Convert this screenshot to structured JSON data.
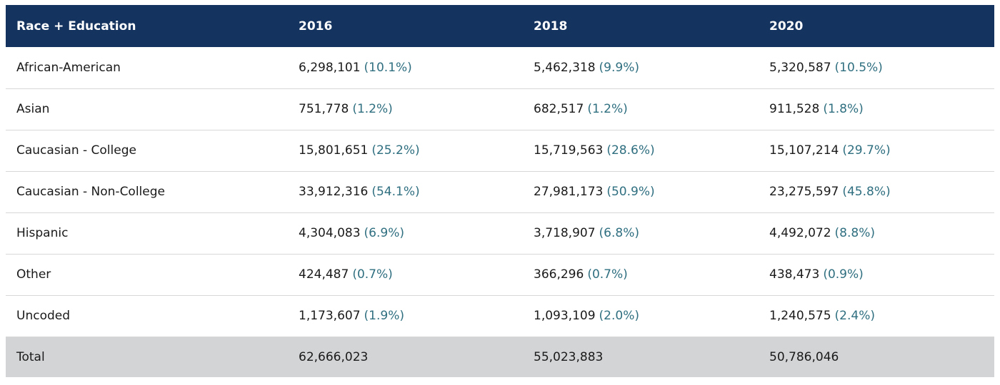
{
  "table": {
    "headers": [
      "Race + Education",
      "2016",
      "2018",
      "2020"
    ],
    "rows": [
      {
        "label": "African-American",
        "cells": [
          {
            "value": "6,298,101",
            "pct": "(10.1%)"
          },
          {
            "value": "5,462,318",
            "pct": "(9.9%)"
          },
          {
            "value": "5,320,587",
            "pct": "(10.5%)"
          }
        ]
      },
      {
        "label": "Asian",
        "cells": [
          {
            "value": "751,778",
            "pct": "(1.2%)"
          },
          {
            "value": "682,517",
            "pct": "(1.2%)"
          },
          {
            "value": "911,528",
            "pct": "(1.8%)"
          }
        ]
      },
      {
        "label": "Caucasian - College",
        "cells": [
          {
            "value": "15,801,651",
            "pct": "(25.2%)"
          },
          {
            "value": "15,719,563",
            "pct": "(28.6%)"
          },
          {
            "value": "15,107,214",
            "pct": "(29.7%)"
          }
        ]
      },
      {
        "label": "Caucasian - Non-College",
        "cells": [
          {
            "value": "33,912,316",
            "pct": "(54.1%)"
          },
          {
            "value": "27,981,173",
            "pct": "(50.9%)"
          },
          {
            "value": "23,275,597",
            "pct": "(45.8%)"
          }
        ]
      },
      {
        "label": "Hispanic",
        "cells": [
          {
            "value": "4,304,083",
            "pct": "(6.9%)"
          },
          {
            "value": "3,718,907",
            "pct": "(6.8%)"
          },
          {
            "value": "4,492,072",
            "pct": "(8.8%)"
          }
        ]
      },
      {
        "label": "Other",
        "cells": [
          {
            "value": "424,487",
            "pct": "(0.7%)"
          },
          {
            "value": "366,296",
            "pct": "(0.7%)"
          },
          {
            "value": "438,473",
            "pct": "(0.9%)"
          }
        ]
      },
      {
        "label": "Uncoded",
        "cells": [
          {
            "value": "1,173,607",
            "pct": "(1.9%)"
          },
          {
            "value": "1,093,109",
            "pct": "(2.0%)"
          },
          {
            "value": "1,240,575",
            "pct": "(2.4%)"
          }
        ]
      }
    ],
    "total": {
      "label": "Total",
      "values": [
        "62,666,023",
        "55,023,883",
        "50,786,046"
      ]
    }
  },
  "colors": {
    "header_bg": "#14335f",
    "header_text": "#ffffff",
    "percent_text": "#2f6f80",
    "total_row_bg": "#d3d4d6",
    "row_divider": "#d7d7d7"
  }
}
